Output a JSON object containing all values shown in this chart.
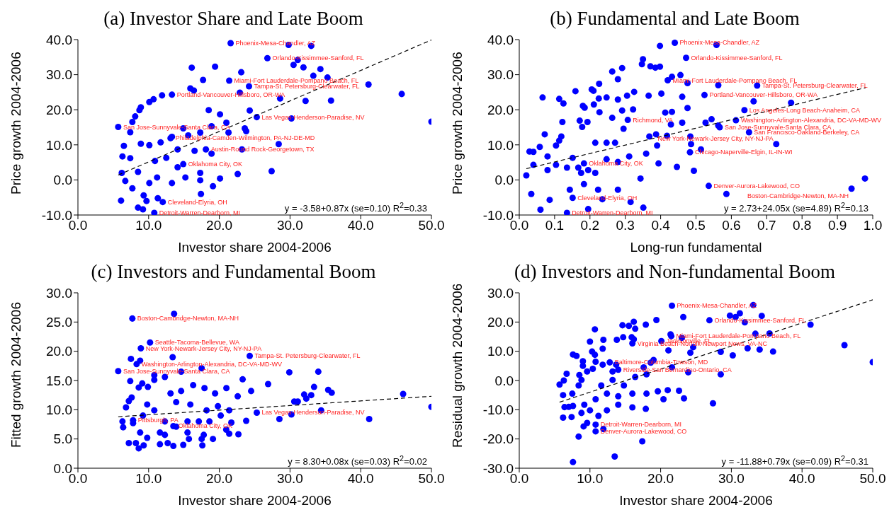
{
  "chart_data": [
    {
      "type": "scatter",
      "title": "(a) Investor Share and Late Boom",
      "xlabel": "Investor share 2004-2006",
      "ylabel": "Price growth 2004-2006",
      "marker": "circle",
      "xlim": [
        0,
        50
      ],
      "xticks": [
        {
          "value": 0,
          "label": "0.0"
        },
        {
          "value": 10,
          "label": "10.0"
        },
        {
          "value": 20,
          "label": "20.0"
        },
        {
          "value": 30,
          "label": "30.0"
        },
        {
          "value": 40,
          "label": "40.0"
        },
        {
          "value": 50,
          "label": "50.0"
        }
      ],
      "ylim": [
        -10,
        40
      ],
      "yticks": [
        {
          "value": -10,
          "label": "-10.0"
        },
        {
          "value": 0,
          "label": "0.0"
        },
        {
          "value": 10,
          "label": "10.0"
        },
        {
          "value": 20,
          "label": "20.0"
        },
        {
          "value": 30,
          "label": "30.0"
        },
        {
          "value": 40,
          "label": "40.0"
        }
      ],
      "series": [
        {
          "color": "#0000ff",
          "x": [
            21.6,
            29.8,
            33.0,
            26.8,
            30.5,
            31.1,
            31.9,
            34.3,
            33.3,
            35.3,
            41.1,
            45.8,
            50.0,
            35.8,
            32.2,
            30.2,
            16.1,
            19.4,
            23.1,
            17.7,
            21.4,
            24.2,
            22.9,
            25.3,
            28.6,
            28.4,
            27.4,
            11.9,
            13.3,
            15.9,
            16.4,
            10.1,
            10.7,
            8.9,
            8.7,
            8.1,
            7.7,
            5.7,
            7.4,
            6.5,
            6.3,
            7.4,
            6.1,
            8.5,
            9.2,
            10.8,
            12.0,
            17.4,
            19.1,
            6.2,
            6.7,
            7.7,
            9.3,
            9.7,
            11.3,
            14.1,
            17.3,
            20.1,
            22.6,
            23.2,
            18.9,
            16.5,
            18.9,
            21.0,
            23.6,
            23.8,
            24.3,
            20.1,
            18.5,
            14.9,
            13.3,
            11.7,
            10.1,
            8.9,
            10.9,
            12.5,
            14.1,
            15.6,
            17.3,
            21.3,
            11.2,
            13.3,
            15.2,
            17.3,
            10.1,
            8.5,
            18.1,
            14.9,
            13.1
          ],
          "values": [
            39.0,
            38.5,
            38.2,
            34.7,
            32.8,
            34.2,
            32.1,
            31.6,
            29.7,
            29.2,
            27.2,
            24.5,
            16.6,
            22.6,
            22.5,
            17.5,
            32.0,
            32.3,
            30.7,
            28.5,
            28.3,
            26.7,
            24.9,
            17.9,
            23.2,
            10.2,
            2.5,
            24.1,
            24.3,
            26.1,
            25.5,
            22.2,
            23.0,
            20.7,
            19.9,
            18.1,
            16.5,
            15.1,
            13.6,
            9.7,
            6.7,
            6.2,
            -5.9,
            -7.9,
            -8.4,
            -9.4,
            -6.3,
            -4.0,
            -1.8,
            2.0,
            -0.3,
            -2.4,
            -4.4,
            -6.0,
            -5.2,
            3.6,
            2.0,
            0.4,
            1.7,
            8.7,
            7.5,
            8.3,
            15.3,
            16.3,
            14.7,
            13.9,
            19.8,
            18.7,
            19.9,
            14.7,
            12.3,
            10.7,
            9.9,
            10.3,
            5.4,
            6.3,
            8.7,
            12.7,
            13.5,
            13.5,
            0.7,
            -0.9,
            0.7,
            -0.1,
            -0.9,
            2.3,
            8.7,
            4.5,
            11.9
          ]
        },
        {
          "type": "line",
          "color": "#000000",
          "line_style": "dashed",
          "x": [
            5.7,
            50.0
          ],
          "values": [
            1.4,
            39.9
          ],
          "marker": "none"
        }
      ],
      "annotations": [
        {
          "text": "Phoenix-Mesa-Chandler, AZ",
          "x": 21.6,
          "y": 39.0
        },
        {
          "text": "Orlando-Kissimmee-Sanford, FL",
          "x": 26.8,
          "y": 34.7
        },
        {
          "text": "Miami-Fort Lauderdale-Pompano Beach, FL",
          "x": 21.4,
          "y": 28.3
        },
        {
          "text": "Tampa-St. Petersburg-Clearwater, FL",
          "x": 24.2,
          "y": 26.7
        },
        {
          "text": "Portland-Vancouver-Hillsboro, OR-WA",
          "x": 13.3,
          "y": 24.3
        },
        {
          "text": "Las Vegas-Henderson-Paradise, NV",
          "x": 25.3,
          "y": 17.9
        },
        {
          "text": "San Jose-Sunnyvale-Santa Clara, CA",
          "x": 5.7,
          "y": 15.1
        },
        {
          "text": "Philadelphia-Camden-Wilmington, PA-NJ-DE-MD",
          "x": 13.1,
          "y": 11.9
        },
        {
          "text": "Austin-Round Rock-Georgetown, TX",
          "x": 18.1,
          "y": 8.7
        },
        {
          "text": "Oklahoma City, OK",
          "x": 14.9,
          "y": 4.5
        },
        {
          "text": "Cleveland-Elyria, OH",
          "x": 12.0,
          "y": -6.3
        },
        {
          "text": "Detroit-Warren-Dearborn, MI",
          "x": 10.8,
          "y": -9.4
        },
        "y = -3.58+0.87x (se=0.10) R$^{2}$=0.33"
      ]
    },
    {
      "type": "scatter",
      "title": "(b) Fundamental and Late Boom",
      "xlabel": "Long-run fundamental",
      "ylabel": "Price growth 2004-2006",
      "marker": "circle",
      "xlim": [
        0,
        1
      ],
      "xticks": [
        {
          "value": 0,
          "label": "0.0"
        },
        {
          "value": 0.1,
          "label": "0.1"
        },
        {
          "value": 0.2,
          "label": "0.2"
        },
        {
          "value": 0.3,
          "label": "0.3"
        },
        {
          "value": 0.4,
          "label": "0.4"
        },
        {
          "value": 0.5,
          "label": "0.5"
        },
        {
          "value": 0.6,
          "label": "0.6"
        },
        {
          "value": 0.7,
          "label": "0.7"
        },
        {
          "value": 0.8,
          "label": "0.8"
        },
        {
          "value": 0.9,
          "label": "0.9"
        },
        {
          "value": 1,
          "label": "1.0"
        }
      ],
      "ylim": [
        -10,
        40
      ],
      "yticks": [
        {
          "value": -10,
          "label": "-10.0"
        },
        {
          "value": 0,
          "label": "0.0"
        },
        {
          "value": 10,
          "label": "10.0"
        },
        {
          "value": 20,
          "label": "20.0"
        },
        {
          "value": 30,
          "label": "30.0"
        },
        {
          "value": 40,
          "label": "40.0"
        }
      ],
      "series": [
        {
          "color": "#0000ff",
          "x": [
            0.44,
            0.558,
            0.398,
            0.472,
            0.35,
            0.347,
            0.371,
            0.385,
            0.398,
            0.291,
            0.263,
            0.279,
            0.226,
            0.456,
            0.432,
            0.42,
            0.476,
            0.563,
            0.673,
            0.205,
            0.21,
            0.159,
            0.325,
            0.066,
            0.113,
            0.125,
            0.225,
            0.247,
            0.279,
            0.305,
            0.366,
            0.402,
            0.461,
            0.524,
            0.663,
            0.769,
            0.211,
            0.18,
            0.185,
            0.227,
            0.291,
            0.322,
            0.413,
            0.432,
            0.476,
            0.637,
            0.613,
            0.544,
            0.527,
            0.563,
            0.567,
            0.65,
            0.727,
            0.978,
            0.94,
            0.586,
            0.536,
            0.494,
            0.461,
            0.429,
            0.484,
            0.486,
            0.483,
            0.514,
            0.368,
            0.387,
            0.418,
            0.171,
            0.193,
            0.178,
            0.122,
            0.072,
            0.119,
            0.113,
            0.104,
            0.058,
            0.029,
            0.04,
            0.02,
            0.034,
            0.06,
            0.135,
            0.195,
            0.086,
            0.143,
            0.151,
            0.235,
            0.315,
            0.351,
            0.223,
            0.279,
            0.183,
            0.215,
            0.247,
            0.279,
            0.311,
            0.359,
            0.39,
            0.446,
            0.394,
            0.343,
            0.08,
            0.104,
            0.135,
            0.04,
            0.08,
            0.151,
            0.167,
            0.175,
            0.195,
            0.215,
            0.247,
            0.271,
            0.295,
            0.263,
            0.307,
            0.183
          ],
          "values": [
            39.1,
            38.5,
            38.2,
            34.8,
            34.4,
            33.0,
            32.4,
            32.0,
            32.3,
            31.9,
            30.9,
            28.7,
            27.4,
            29.9,
            29.4,
            28.4,
            27.6,
            27.0,
            26.9,
            25.8,
            25.4,
            25.3,
            25.1,
            23.5,
            23.1,
            21.8,
            23.2,
            23.5,
            22.9,
            24.0,
            24.0,
            24.6,
            23.7,
            24.2,
            22.4,
            22.0,
            21.5,
            21.1,
            20.6,
            19.3,
            19.8,
            20.1,
            19.2,
            19.4,
            20.5,
            19.9,
            17.0,
            17.3,
            16.3,
            15.5,
            15.0,
            13.6,
            10.2,
            0.4,
            -2.5,
            -4.0,
            -1.7,
            2.6,
            16.3,
            15.8,
            12.4,
            10.2,
            7.9,
            8.7,
            12.4,
            13.0,
            12.6,
            16.9,
            16.5,
            15.1,
            16.5,
            13.0,
            12.4,
            11.2,
            9.8,
            9.4,
            8.1,
            8.0,
            1.3,
            -4.0,
            -8.5,
            -9.4,
            -8.3,
            -5.7,
            -2.8,
            -5.1,
            -5.5,
            -6.3,
            -7.9,
            -2.8,
            -2.8,
            -1.2,
            2.0,
            5.9,
            5.1,
            6.7,
            7.5,
            9.8,
            3.7,
            4.7,
            0.4,
            6.7,
            4.3,
            3.5,
            4.3,
            2.8,
            6.3,
            3.5,
            2.0,
            2.8,
            10.6,
            10.6,
            10.6,
            14.6,
            17.7,
            17.1,
            4.7
          ]
        },
        {
          "type": "line",
          "color": "#000000",
          "line_style": "dashed",
          "x": [
            0.02,
            0.98
          ],
          "values": [
            3.2,
            26.3
          ],
          "marker": "none"
        }
      ],
      "annotations": [
        {
          "text": "Phoenix-Mesa-Chandler, AZ",
          "x": 0.44,
          "y": 39.1
        },
        {
          "text": "Orlando-Kissimmee-Sanford, FL",
          "x": 0.472,
          "y": 34.8
        },
        {
          "text": "Miami-Fort Lauderdale-Pompano Beach, FL",
          "x": 0.42,
          "y": 28.4
        },
        {
          "text": "Tampa-St. Petersburg-Clearwater, FL",
          "x": 0.673,
          "y": 26.9
        },
        {
          "text": "Portland-Vancouver-Hillsboro, OR-WA",
          "x": 0.524,
          "y": 24.2
        },
        {
          "text": "Los Angeles-Long Beach-Anaheim, CA",
          "x": 0.637,
          "y": 19.9
        },
        {
          "text": "Washington-Arlington-Alexandria, DC-VA-MD-WV",
          "x": 0.613,
          "y": 17.0
        },
        {
          "text": "Richmond, VA",
          "x": 0.307,
          "y": 17.1
        },
        {
          "text": "San Jose-Sunnyvale-Santa Clara, CA",
          "x": 0.567,
          "y": 15.0
        },
        {
          "text": "San Francisco-Oakland-Berkeley, CA",
          "x": 0.65,
          "y": 13.6
        },
        {
          "text": "New York-Newark-Jersey City, NY-NJ-PA",
          "x": 0.727,
          "y": 10.2
        },
        {
          "text": "Chicago-Naperville-Elgin, IL-IN-WI",
          "x": 0.483,
          "y": 7.9
        },
        {
          "text": "Oklahoma City, OK",
          "x": 0.183,
          "y": 4.7
        },
        {
          "text": "Denver-Aurora-Lakewood, CO",
          "x": 0.536,
          "y": -1.7
        },
        {
          "text": "Boston-Cambridge-Newton, MA-NH",
          "x": 0.94,
          "y": -2.5
        },
        {
          "text": "Cleveland-Elyria, OH",
          "x": 0.151,
          "y": -5.1
        },
        {
          "text": "Detroit-Warren-Dearborn, MI",
          "x": 0.135,
          "y": -9.4
        },
        "y = 2.73+24.05x (se=4.89) R$^{2}$=0.13"
      ]
    },
    {
      "type": "scatter",
      "title": "(c) Investors and Fundamental Boom",
      "xlabel": "Investor share 2004-2006",
      "ylabel": "Fitted growth 2004-2006",
      "marker": "circle",
      "xlim": [
        0,
        50
      ],
      "xticks": [
        {
          "value": 0,
          "label": "0.0"
        },
        {
          "value": 10,
          "label": "10.0"
        },
        {
          "value": 20,
          "label": "20.0"
        },
        {
          "value": 30,
          "label": "30.0"
        },
        {
          "value": 40,
          "label": "40.0"
        },
        {
          "value": 50,
          "label": "50.0"
        }
      ],
      "ylim": [
        0,
        30
      ],
      "yticks": [
        {
          "value": 0,
          "label": "0.0"
        },
        {
          "value": 5,
          "label": "5.0"
        },
        {
          "value": 10,
          "label": "10.0"
        },
        {
          "value": 15,
          "label": "15.0"
        },
        {
          "value": 20,
          "label": "20.0"
        },
        {
          "value": 25,
          "label": "25.0"
        },
        {
          "value": 30,
          "label": "30.0"
        }
      ],
      "series": [
        {
          "color": "#0000ff",
          "x": [
            13.6,
            7.7,
            10.2,
            8.9,
            13.4,
            24.3,
            7.5,
            8.8,
            8.3,
            5.7,
            17.5,
            14.6,
            29.9,
            34.0,
            23.3,
            10.8,
            7.4,
            9.1,
            8.6,
            9.9,
            26.9,
            33.4,
            35.4,
            35.9,
            32.0,
            33.0,
            32.3,
            30.6,
            31.1,
            46.0,
            50.0,
            41.2,
            34.4,
            30.2,
            28.5,
            25.3,
            23.8,
            22.7,
            21.7,
            21.4,
            20.98,
            19.1,
            17.6,
            17.5,
            15.7,
            14.9,
            13.5,
            12.7,
            11.6,
            9.3,
            8.6,
            8.2,
            7.2,
            6.4,
            6.3,
            6.8,
            7.8,
            7.2,
            7.6,
            9.8,
            10.8,
            9.2,
            8.8,
            9.8,
            11.6,
            12.3,
            13.9,
            15.5,
            17.1,
            18.6,
            20.2,
            18.2,
            15.9,
            13.9,
            13.1,
            14.6,
            16.3,
            17.9,
            19.4,
            21.0,
            22.6,
            24.5,
            19.8,
            21.4,
            12.3,
            15.5,
            17.8,
            10.8,
            12.3,
            7.8,
            13.5
          ],
          "values": [
            26.4,
            25.6,
            21.5,
            20.5,
            19.0,
            19.2,
            18.7,
            18.4,
            17.8,
            16.6,
            17.1,
            16.5,
            16.4,
            16.5,
            15.2,
            15.9,
            14.9,
            14.5,
            13.8,
            13.9,
            14.4,
            13.9,
            13.4,
            12.9,
            12.6,
            12.5,
            11.9,
            11.4,
            11.4,
            12.7,
            10.5,
            8.4,
            9.9,
            9.2,
            8.4,
            9.5,
            8.1,
            5.8,
            7.8,
            5.9,
            6.6,
            5.0,
            3.9,
            5.0,
            5.0,
            4.0,
            3.8,
            4.3,
            4.1,
            3.9,
            3.4,
            4.3,
            4.3,
            7.0,
            8.0,
            10.4,
            7.7,
            11.5,
            12.1,
            10.9,
            9.9,
            9.0,
            6.1,
            5.2,
            6.1,
            8.0,
            7.1,
            8.0,
            8.0,
            8.0,
            9.0,
            9.9,
            10.9,
            11.3,
            12.8,
            13.2,
            14.2,
            13.7,
            12.8,
            13.7,
            12.3,
            13.2,
            10.6,
            9.9,
            5.7,
            6.1,
            5.7,
            15.1,
            15.6,
            8.2,
            7.2
          ]
        },
        {
          "type": "line",
          "color": "#000000",
          "line_style": "dashed",
          "x": [
            5.7,
            50.0
          ],
          "values": [
            8.8,
            12.3
          ],
          "marker": "none"
        }
      ],
      "annotations": [
        {
          "text": "Boston-Cambridge-Newton, MA-NH",
          "x": 7.7,
          "y": 25.6
        },
        {
          "text": "Seattle-Tacoma-Bellevue, WA",
          "x": 10.2,
          "y": 21.5
        },
        {
          "text": "New York-Newark-Jersey City, NY-NJ-PA",
          "x": 8.9,
          "y": 20.5
        },
        {
          "text": "Tampa-St. Petersburg-Clearwater, FL",
          "x": 24.3,
          "y": 19.2
        },
        {
          "text": "Washington-Arlington-Alexandria, DC-VA-MD-WV",
          "x": 8.3,
          "y": 17.8
        },
        {
          "text": "San Jose-Sunnyvale-Santa Clara, CA",
          "x": 5.7,
          "y": 16.6
        },
        {
          "text": "Las Vegas-Henderson-Paradise, NV",
          "x": 25.3,
          "y": 9.5
        },
        {
          "text": "Pittsburgh, PA",
          "x": 7.8,
          "y": 8.2
        },
        {
          "text": "Oklahoma City, OK",
          "x": 13.5,
          "y": 7.2
        },
        "y = 8.30+0.08x (se=0.03) R$^{2}$=0.02"
      ]
    },
    {
      "type": "scatter",
      "title": "(d) Investors and Non-fundamental Boom",
      "xlabel": "Investor share 2004-2006",
      "ylabel": "Residual growth 2004-2006",
      "marker": "circle",
      "xlim": [
        0,
        50
      ],
      "xticks": [
        {
          "value": 0,
          "label": "0.0"
        },
        {
          "value": 10,
          "label": "10.0"
        },
        {
          "value": 20,
          "label": "20.0"
        },
        {
          "value": 30,
          "label": "30.0"
        },
        {
          "value": 40,
          "label": "40.0"
        },
        {
          "value": 50,
          "label": "50.0"
        }
      ],
      "ylim": [
        -30,
        30
      ],
      "yticks": [
        {
          "value": -30,
          "label": "-30.0"
        },
        {
          "value": -20,
          "label": "-20.0"
        },
        {
          "value": -10,
          "label": "-10.0"
        },
        {
          "value": 0,
          "label": "0.0"
        },
        {
          "value": 10,
          "label": "10.0"
        },
        {
          "value": 20,
          "label": "20.0"
        },
        {
          "value": 30,
          "label": "30.0"
        }
      ],
      "series": [
        {
          "color": "#0000ff",
          "x": [
            21.6,
            33.1,
            29.8,
            30.6,
            31.2,
            31.9,
            34.3,
            26.9,
            23.2,
            19.4,
            41.2,
            46.0,
            50.0,
            35.9,
            34.0,
            32.3,
            33.4,
            35.4,
            21.4,
            21.5,
            23.0,
            20.1,
            24.6,
            28.5,
            30.2,
            24.2,
            21.1,
            17.9,
            16.2,
            15.5,
            16.4,
            14.6,
            10.7,
            10.0,
            11.9,
            14.7,
            15.9,
            16.0,
            16.2,
            11.8,
            10.3,
            10.7,
            7.6,
            8.1,
            13.8,
            9.0,
            10.8,
            9.0,
            10.4,
            11.8,
            13.7,
            17.6,
            18.6,
            19.0,
            21.6,
            23.9,
            28.5,
            27.4,
            23.3,
            22.6,
            21.0,
            19.6,
            17.9,
            17.4,
            13.5,
            7.6,
            8.4,
            10.8,
            11.9,
            9.1,
            9.6,
            10.8,
            6.2,
            7.4,
            6.4,
            7.0,
            7.6,
            6.2,
            7.5,
            5.7,
            6.3,
            6.7,
            8.5,
            8.8,
            9.6,
            8.4,
            8.8,
            9.2,
            10.0,
            11.2,
            12.4,
            14.0,
            16.0,
            18.0,
            20.4,
            11.6,
            13.2,
            14.8,
            16.4,
            18.0,
            12.4,
            14.0,
            16.0,
            10.8,
            13.2,
            12.8,
            14.0
          ],
          "values": [
            25.6,
            25.8,
            22.2,
            21.7,
            23.0,
            19.9,
            22.1,
            20.6,
            21.7,
            20.7,
            19.1,
            12.1,
            6.3,
            9.9,
            10.6,
            11.0,
            16.0,
            16.1,
            15.8,
            15.2,
            14.6,
            13.5,
            11.4,
            9.8,
            8.6,
            9.5,
            10.3,
            19.1,
            20.1,
            18.7,
            17.7,
            18.9,
            17.5,
            13.3,
            13.9,
            14.8,
            14.8,
            12.7,
            14.1,
            10.9,
            9.9,
            8.8,
            8.9,
            8.4,
            13.9,
            6.6,
            6.4,
            5.0,
            4.0,
            5.4,
            5.4,
            4.5,
            6.1,
            7.0,
            4.5,
            2.8,
            2.1,
            -7.8,
            -6.1,
            -3.5,
            -3.3,
            -3.7,
            -9.7,
            -20.8,
            -26.0,
            -27.9,
            -19.2,
            -17.4,
            -16.6,
            -15.7,
            -14.5,
            -15.1,
            -12.7,
            -12.5,
            -9.1,
            -9.0,
            -8.7,
            -5.0,
            -4.5,
            -1.4,
            0.0,
            2.3,
            1.9,
            0.2,
            3.1,
            -1.7,
            -11.1,
            -8.3,
            -10.2,
            -12.1,
            -10.2,
            -8.3,
            -9.2,
            -4.5,
            -6.4,
            -1.7,
            0.2,
            -1.7,
            1.2,
            2.1,
            -4.5,
            -5.4,
            -4.5,
            -6.4,
            3.1,
            6.2,
            3.7
          ]
        },
        {
          "type": "line",
          "color": "#000000",
          "line_style": "dashed",
          "x": [
            5.7,
            50.0
          ],
          "values": [
            -7.4,
            27.6
          ],
          "marker": "none"
        }
      ],
      "annotations": [
        {
          "text": "Phoenix-Mesa-Chandler, AZ",
          "x": 21.6,
          "y": 25.6
        },
        {
          "text": "Orlando-Kissimmee-Sanford, FL",
          "x": 26.9,
          "y": 20.6
        },
        {
          "text": "Miami-Fort Lauderdale-Pompano Beach, FL",
          "x": 21.5,
          "y": 15.2
        },
        {
          "text": "Jacksonville, FL",
          "x": 20.1,
          "y": 13.5
        },
        {
          "text": "Virginia Beach-Norfolk-Newport News, VA-NC",
          "x": 16.0,
          "y": 12.7
        },
        {
          "text": "Baltimore-Columbia-Towson, MD",
          "x": 12.8,
          "y": 6.2
        },
        {
          "text": "Riverside-San Bernardino-Ontario, CA",
          "x": 14.0,
          "y": 3.7
        },
        {
          "text": "Detroit-Warren-Dearborn, MI",
          "x": 10.8,
          "y": -15.1
        },
        {
          "text": "Denver-Aurora-Lakewood, CO",
          "x": 10.8,
          "y": -17.4
        },
        "y = -11.88+0.79x (se=0.09) R$^{2}$=0.31"
      ]
    }
  ]
}
